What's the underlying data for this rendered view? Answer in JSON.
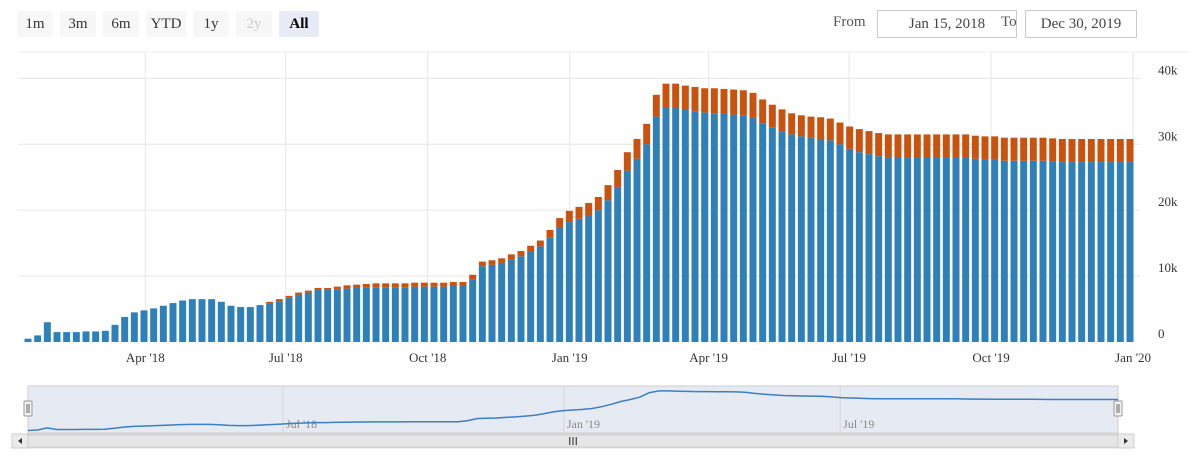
{
  "range_selector": {
    "buttons": [
      {
        "label": "1m",
        "state": "normal"
      },
      {
        "label": "3m",
        "state": "normal"
      },
      {
        "label": "6m",
        "state": "normal"
      },
      {
        "label": "YTD",
        "state": "normal"
      },
      {
        "label": "1y",
        "state": "normal"
      },
      {
        "label": "2y",
        "state": "disabled"
      },
      {
        "label": "All",
        "state": "active"
      }
    ],
    "from_label": "From",
    "from_value": "Jan 15, 2018",
    "to_label": "To",
    "to_value": "Dec 30, 2019"
  },
  "colors": {
    "blue": "#2f7fb8",
    "orange": "#c9520f",
    "navigator_fill": "#e6ebf3",
    "navigator_line": "#3b7fc4",
    "grid": "#e6e6e6"
  },
  "navigator": {
    "tick_labels": [
      "Jul '18",
      "Jan '19",
      "Jul '19"
    ],
    "scrollbar_grip": "III"
  },
  "chart_data": {
    "type": "bar",
    "stacked": true,
    "x_type": "weekly dates",
    "x_start": "2018-01-15",
    "x_end": "2019-12-30",
    "x_ticks": [
      "Apr '18",
      "Jul '18",
      "Oct '18",
      "Jan '19",
      "Apr '19",
      "Jul '19",
      "Oct '19",
      "Jan '20"
    ],
    "y_ticks": [
      "0",
      "10k",
      "20k",
      "30k",
      "40k"
    ],
    "ylim": [
      0,
      44000
    ],
    "grid": true,
    "legend": "none",
    "title": "",
    "xlabel": "",
    "ylabel": "",
    "series": [
      {
        "color": "#2f7fb8",
        "values": [
          500,
          1000,
          3000,
          1500,
          1500,
          1500,
          1600,
          1600,
          1700,
          2600,
          3800,
          4500,
          4800,
          5100,
          5500,
          5900,
          6300,
          6500,
          6500,
          6500,
          6100,
          5500,
          5300,
          5300,
          5600,
          5900,
          6200,
          6700,
          7200,
          7500,
          7900,
          7900,
          8000,
          8100,
          8200,
          8300,
          8300,
          8300,
          8300,
          8300,
          8400,
          8400,
          8400,
          8400,
          8500,
          8500,
          9500,
          11500,
          11700,
          12000,
          12500,
          13000,
          13800,
          14500,
          15800,
          17300,
          18200,
          18700,
          19200,
          20000,
          21500,
          23500,
          26000,
          27800,
          30000,
          34200,
          35500,
          35500,
          35200,
          35000,
          34800,
          34700,
          34600,
          34500,
          34400,
          34000,
          33200,
          32500,
          32000,
          31500,
          31200,
          31000,
          30800,
          30600,
          30000,
          29300,
          28800,
          28500,
          28200,
          28000,
          28000,
          28000,
          28000,
          28000,
          28000,
          28000,
          28000,
          28000,
          27800,
          27700,
          27700,
          27500,
          27500,
          27500,
          27500,
          27500,
          27400,
          27300,
          27300,
          27300,
          27300,
          27300,
          27300,
          27300,
          27300
        ]
      },
      {
        "color": "#c9520f",
        "values": [
          0,
          0,
          0,
          0,
          0,
          0,
          0,
          0,
          0,
          0,
          0,
          0,
          0,
          0,
          0,
          0,
          0,
          0,
          0,
          0,
          0,
          0,
          0,
          0,
          0,
          200,
          300,
          300,
          300,
          300,
          300,
          300,
          400,
          500,
          500,
          500,
          600,
          600,
          600,
          600,
          600,
          600,
          600,
          600,
          600,
          600,
          700,
          700,
          700,
          700,
          800,
          800,
          800,
          900,
          1200,
          1500,
          1700,
          1800,
          1900,
          2000,
          2300,
          2600,
          2800,
          3000,
          3100,
          3300,
          3700,
          3700,
          3700,
          3700,
          3700,
          3800,
          3800,
          3800,
          3800,
          3800,
          3600,
          3500,
          3300,
          3200,
          3200,
          3200,
          3300,
          3300,
          3300,
          3400,
          3500,
          3500,
          3500,
          3500,
          3500,
          3500,
          3500,
          3500,
          3500,
          3500,
          3500,
          3500,
          3500,
          3500,
          3500,
          3500,
          3500,
          3500,
          3500,
          3500,
          3500,
          3500,
          3500,
          3500,
          3500,
          3500,
          3500,
          3500,
          3500
        ]
      }
    ]
  }
}
